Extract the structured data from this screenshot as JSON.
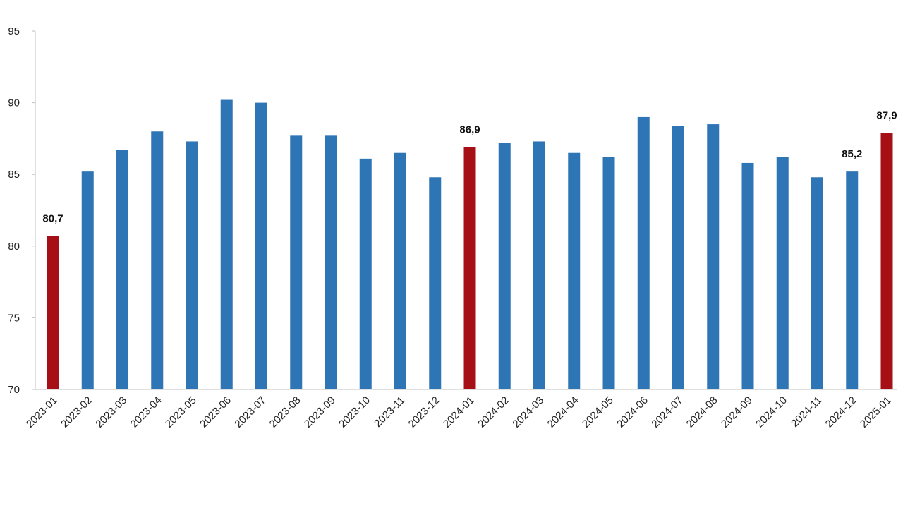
{
  "chart_data": {
    "type": "bar",
    "title": "",
    "xlabel": "",
    "ylabel": "",
    "ylim": [
      70,
      95
    ],
    "yticks": [
      70,
      75,
      80,
      85,
      90,
      95
    ],
    "ytick_labels": [
      "70",
      "75",
      "80",
      "85",
      "90",
      "95"
    ],
    "grid": false,
    "categories": [
      "2023-01",
      "2023-02",
      "2023-03",
      "2023-04",
      "2023-05",
      "2023-06",
      "2023-07",
      "2023-08",
      "2023-09",
      "2023-10",
      "2023-11",
      "2023-12",
      "2024-01",
      "2024-02",
      "2024-03",
      "2024-04",
      "2024-05",
      "2024-06",
      "2024-07",
      "2024-08",
      "2024-09",
      "2024-10",
      "2024-11",
      "2024-12",
      "2025-01"
    ],
    "values": [
      80.7,
      85.2,
      86.7,
      88.0,
      87.3,
      90.2,
      90.0,
      87.7,
      87.7,
      86.1,
      86.5,
      84.8,
      86.9,
      87.2,
      87.3,
      86.5,
      86.2,
      89.0,
      88.4,
      88.5,
      85.8,
      86.2,
      84.8,
      85.2,
      87.9
    ],
    "highlight_indices": [
      0,
      12,
      24
    ],
    "data_labels": [
      {
        "index": 0,
        "text": "80,7"
      },
      {
        "index": 12,
        "text": "86,9"
      },
      {
        "index": 23,
        "text": "85,2"
      },
      {
        "index": 24,
        "text": "87,9"
      }
    ],
    "colors": {
      "bar": "#2e75b6",
      "highlight": "#a50f15",
      "axis": "#bfbfbf"
    }
  }
}
